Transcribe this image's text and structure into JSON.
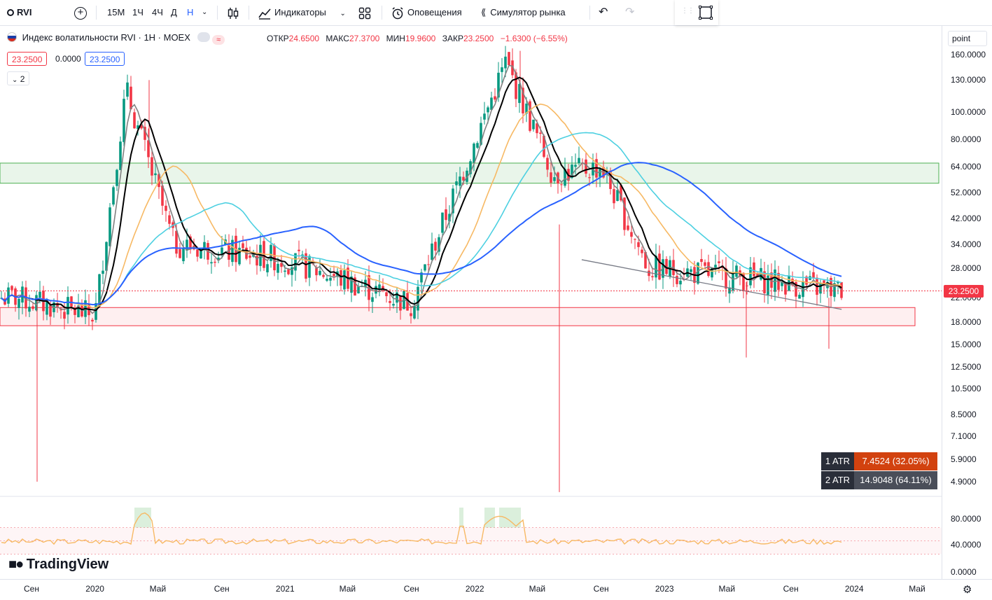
{
  "toolbar": {
    "symbol": "RVI",
    "timeframes": [
      "15М",
      "1Ч",
      "4Ч",
      "Д",
      "Н"
    ],
    "active_timeframe": "Н",
    "indicators_label": "Индикаторы",
    "alerts_label": "Оповещения",
    "replay_label": "Симулятор рынка"
  },
  "legend": {
    "title": "Индекс волатильности RVI · 1Н · MOEX",
    "open_label": "ОТКР",
    "open": "24.6500",
    "high_label": "МАКС",
    "high": "27.3700",
    "low_label": "МИН",
    "low": "19.9600",
    "close_label": "ЗАКР",
    "close": "23.2500",
    "change": "−1.6300 (−6.55%)",
    "bid": "23.2500",
    "spread": "0.0000",
    "ask": "23.2500",
    "hidden_count": "2"
  },
  "scale_mode": "point",
  "price_axis": {
    "labels": [
      "160.0000",
      "130.0000",
      "100.0000",
      "80.0000",
      "64.0000",
      "52.0000",
      "42.0000",
      "34.0000",
      "28.0000",
      "22.0000",
      "18.0000",
      "15.0000",
      "12.5000",
      "10.5000",
      "8.5000",
      "7.1000",
      "5.9000",
      "4.9000"
    ],
    "current_price": "23.2500"
  },
  "oscillator_axis": {
    "labels": [
      "80.0000",
      "40.0000",
      "0.0000"
    ]
  },
  "time_axis": {
    "labels": [
      "Сен",
      "2020",
      "Май",
      "Сен",
      "2021",
      "Май",
      "Сен",
      "2022",
      "Май",
      "Сен",
      "2023",
      "Май",
      "Сен",
      "2024",
      "Май"
    ]
  },
  "atr": {
    "row1_label": "1 ATR",
    "row1_value": "7.4524 (32.05%)",
    "row2_label": "2 ATR",
    "row2_value": "14.9048 (64.11%)"
  },
  "brand": "TradingView",
  "colors": {
    "up": "#089981",
    "down": "#f23645",
    "ma_black": "#000000",
    "ma_gray": "#808080",
    "ma_orange": "#f7b964",
    "ma_teal": "#4dd0e1",
    "ma_blue": "#2962ff",
    "rsi": "#f7b964"
  },
  "chart_data": {
    "type": "candlestick",
    "timeframe": "1W",
    "y_scale": "log",
    "ylim": [
      4.5,
      175
    ],
    "key_points": [
      {
        "x": "2019-08",
        "y": 22
      },
      {
        "x": "2020-01",
        "y": 19
      },
      {
        "x": "2020-03",
        "y": 120
      },
      {
        "x": "2020-06",
        "y": 34
      },
      {
        "x": "2021-01",
        "y": 30
      },
      {
        "x": "2021-09",
        "y": 21
      },
      {
        "x": "2022-03",
        "y": 150
      },
      {
        "x": "2022-06",
        "y": 60
      },
      {
        "x": "2022-09",
        "y": 64
      },
      {
        "x": "2022-12",
        "y": 28
      },
      {
        "x": "2023-06",
        "y": 26
      },
      {
        "x": "2023-12",
        "y": 23.25
      }
    ],
    "zones": [
      {
        "from": 56,
        "to": 66,
        "color": "green"
      },
      {
        "from": 17.5,
        "to": 20.3,
        "color": "red"
      }
    ],
    "trendline": {
      "from": {
        "x": "2022-10",
        "y": 30
      },
      "to": {
        "x": "2023-12",
        "y": 20
      }
    },
    "oscillator_range": [
      0,
      100
    ]
  }
}
